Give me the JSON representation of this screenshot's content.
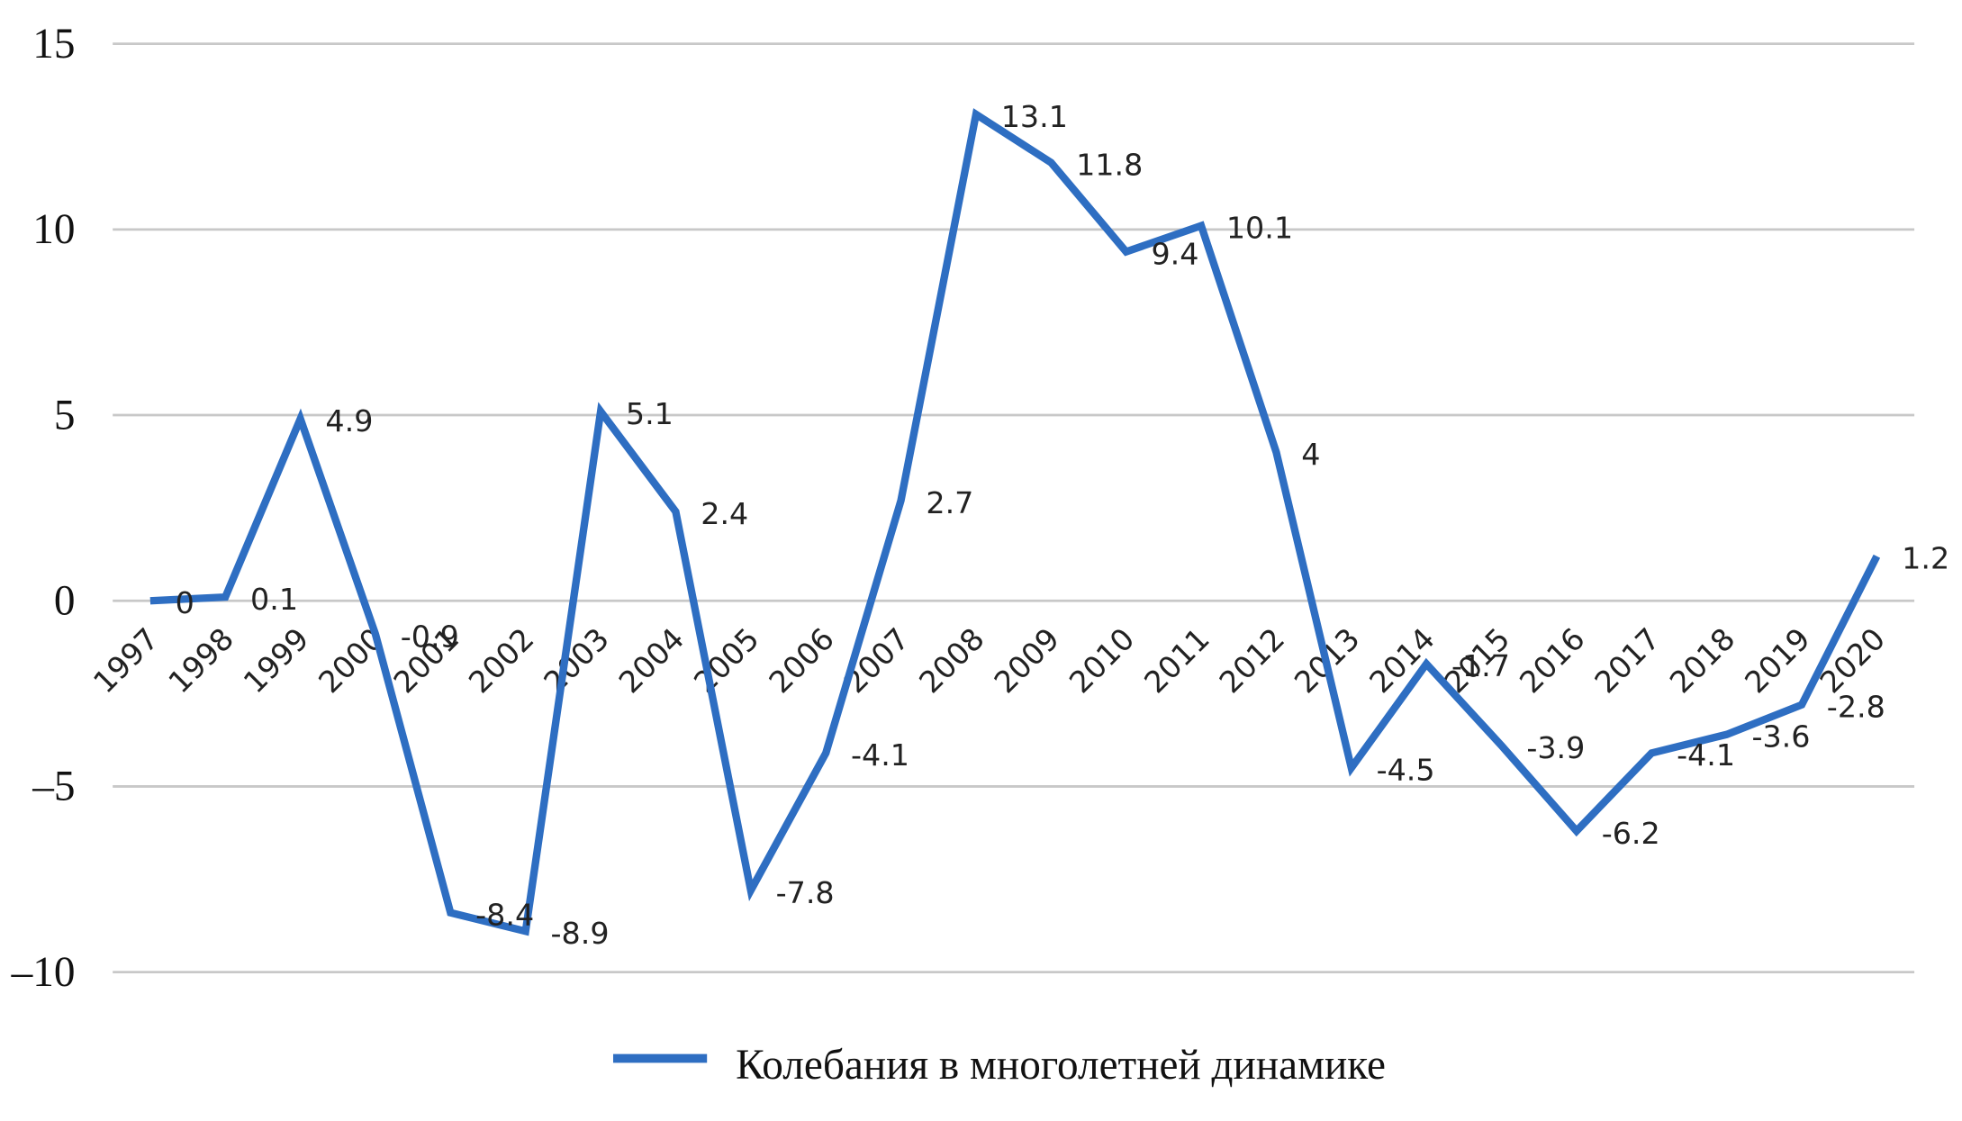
{
  "chart_data": {
    "type": "line",
    "categories": [
      "1997",
      "1998",
      "1999",
      "2000",
      "2001",
      "2002",
      "2003",
      "2004",
      "2005",
      "2006",
      "2007",
      "2008",
      "2009",
      "2010",
      "2011",
      "2012",
      "2013",
      "2014",
      "2015",
      "2016",
      "2017",
      "2018",
      "2019",
      "2020"
    ],
    "series": [
      {
        "name": "Колебания в многолетней динамике",
        "color": "#2e6ec2",
        "values": [
          0,
          0.1,
          4.9,
          -0.9,
          -8.4,
          -8.9,
          5.1,
          2.4,
          -7.8,
          -4.1,
          2.7,
          13.1,
          11.8,
          9.4,
          10.1,
          4,
          -4.5,
          -1.7,
          -3.9,
          -6.2,
          -4.1,
          -3.6,
          -2.8,
          1.2
        ]
      }
    ],
    "ylim": [
      -10,
      15
    ],
    "yticks": [
      {
        "value": -10,
        "label": "–10"
      },
      {
        "value": -5,
        "label": "–5"
      },
      0,
      5,
      10,
      15
    ],
    "grid": true,
    "data_labels": true,
    "legend": "bottom"
  }
}
